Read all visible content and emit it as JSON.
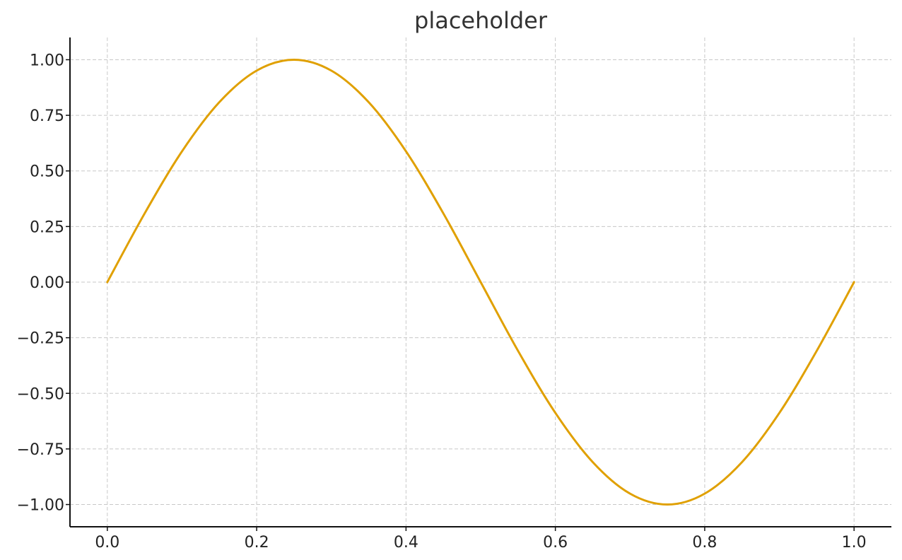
{
  "chart_data": {
    "type": "line",
    "title": "placeholder",
    "xlabel": "",
    "ylabel": "",
    "xlim": [
      -0.05,
      1.05
    ],
    "ylim": [
      -1.1,
      1.1
    ],
    "xticks": [
      0.0,
      0.2,
      0.4,
      0.6,
      0.8,
      1.0
    ],
    "xtick_labels": [
      "0.0",
      "0.2",
      "0.4",
      "0.6",
      "0.8",
      "1.0"
    ],
    "yticks": [
      1.0,
      0.75,
      0.5,
      0.25,
      0.0,
      -0.25,
      -0.5,
      -0.75,
      -1.0
    ],
    "ytick_labels": [
      "1.00",
      "0.75",
      "0.50",
      "0.25",
      "0.00",
      "−0.25",
      "−0.50",
      "−0.75",
      "−1.00"
    ],
    "grid": true,
    "series": [
      {
        "color": "#e0a000",
        "x": [
          0.0,
          0.05,
          0.1,
          0.15,
          0.2,
          0.25,
          0.3,
          0.35,
          0.4,
          0.45,
          0.5,
          0.55,
          0.6,
          0.65,
          0.7,
          0.75,
          0.8,
          0.85,
          0.9,
          0.95,
          1.0
        ],
        "y": [
          0.0,
          0.309,
          0.588,
          0.809,
          0.951,
          1.0,
          0.951,
          0.809,
          0.588,
          0.309,
          0.0,
          -0.309,
          -0.588,
          -0.809,
          -0.951,
          -1.0,
          -0.951,
          -0.809,
          -0.588,
          -0.309,
          0.0
        ]
      }
    ]
  }
}
